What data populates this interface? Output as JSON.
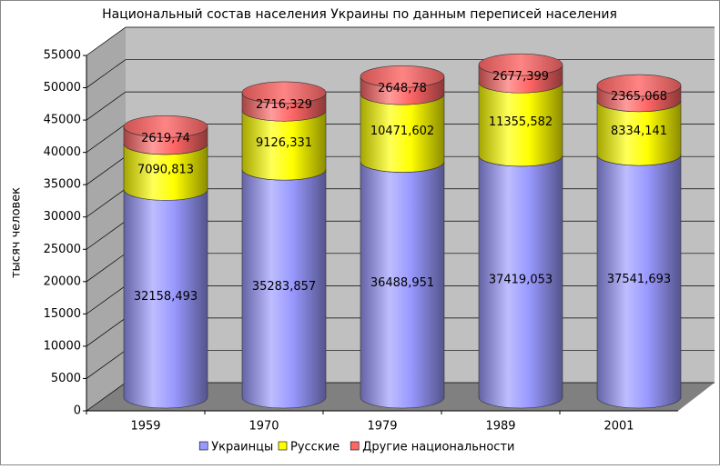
{
  "chart_data": {
    "type": "bar3d-cylinder-stacked",
    "title": "Национальный состав населения Украины по данным переписей населения",
    "y_label": "тысяч человек",
    "categories": [
      "1959",
      "1970",
      "1979",
      "1989",
      "2001"
    ],
    "series": [
      {
        "name": "Украинцы",
        "color": "#9999ff",
        "values": [
          32158.493,
          35283.857,
          36488.951,
          37419.053,
          37541.693
        ],
        "value_labels": [
          "32158,493",
          "35283,857",
          "36488,951",
          "37419,053",
          "37541,693"
        ]
      },
      {
        "name": "Русские",
        "color": "#ffff00",
        "values": [
          7090.813,
          9126.331,
          10471.602,
          11355.582,
          8334.141
        ],
        "value_labels": [
          "7090,813",
          "9126,331",
          "10471,602",
          "11355,582",
          "8334,141"
        ]
      },
      {
        "name": "Другие национальности",
        "color": "#ff6666",
        "values": [
          2619.74,
          2716.329,
          2648.78,
          2677.399,
          2365.068
        ],
        "value_labels": [
          "2619,74",
          "2716,329",
          "2648,78",
          "2677,399",
          "2365,068"
        ]
      }
    ],
    "ylim": [
      0,
      55000
    ],
    "yticks": [
      0,
      5000,
      10000,
      15000,
      20000,
      25000,
      30000,
      35000,
      40000,
      45000,
      50000,
      55000
    ],
    "grid": true,
    "legend": "bottom"
  }
}
